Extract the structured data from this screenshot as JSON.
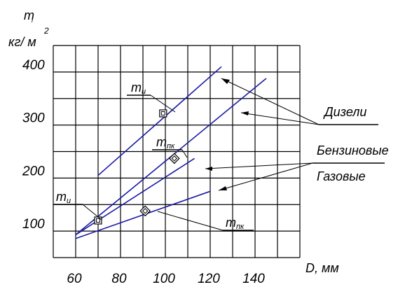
{
  "chart_data": {
    "type": "line",
    "ylabel_symbol": "m",
    "ylabel_sub": "i",
    "ylabel_units": "кг/ м",
    "ylabel_units_sup": "2",
    "xlabel": "D, мм",
    "x_ticks": [
      "60",
      "80",
      "100",
      "120",
      "140"
    ],
    "y_ticks": [
      "100",
      "200",
      "300",
      "400"
    ],
    "xlim": [
      50,
      160
    ],
    "ylim": [
      50,
      450
    ],
    "grid": true,
    "series": [
      {
        "name": "Дизели",
        "marker_label": "mи",
        "x": [
          70,
          125
        ],
        "y": [
          205,
          410
        ],
        "marker": {
          "x": 99,
          "y": 322,
          "shape": "square"
        }
      },
      {
        "name": "Дизели",
        "marker_label": "mпк",
        "x": [
          60,
          145
        ],
        "y": [
          93,
          388
        ],
        "marker": {
          "x": 104,
          "y": 237,
          "shape": "diamond"
        }
      },
      {
        "name": "Бензиновые",
        "marker_label": "mи",
        "x": [
          60,
          113
        ],
        "y": [
          93,
          237
        ],
        "marker": {
          "x": 70,
          "y": 120,
          "shape": "square"
        }
      },
      {
        "name": "Газовые",
        "marker_label": "mпк",
        "x": [
          60,
          120
        ],
        "y": [
          86,
          175
        ],
        "marker": {
          "x": 91,
          "y": 138,
          "shape": "diamond"
        }
      }
    ],
    "annotations": {
      "m_label": "m",
      "sub_i": "и",
      "sub_pk": "пк",
      "diesel": "Дизели",
      "gasoline": "Бензиновые",
      "gas": "Газовые"
    }
  }
}
